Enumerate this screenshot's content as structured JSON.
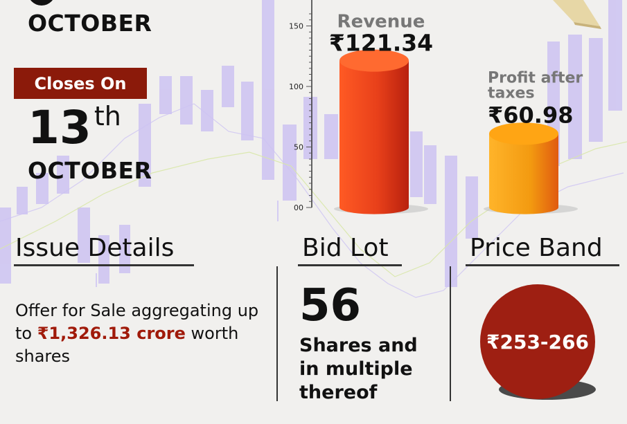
{
  "dates": {
    "open_month": "OCTOBER",
    "close_label": "Closes On",
    "close_day": "13",
    "close_suffix": "th",
    "close_month": "OCTOBER"
  },
  "issue": {
    "heading": "Issue Details",
    "text_before": "Offer for Sale aggregating up to ",
    "amount": "₹1,326.13 crore",
    "text_after": " worth shares"
  },
  "bid": {
    "heading": "Bid Lot",
    "number": "56",
    "line1": "Shares and",
    "line2": "in multiple",
    "line3": "thereof"
  },
  "price": {
    "heading": "Price Band",
    "value": "₹253-266"
  },
  "colors": {
    "accent_red": "#8b1a0a",
    "amount_red": "#a01a0a",
    "revenue_bar": "#e8401a",
    "profit_bar": "#f39a10",
    "candle": "#c9bff0"
  },
  "chart_data": {
    "type": "bar",
    "categories": [
      "Revenue",
      "Profit after taxes"
    ],
    "values": [
      121.34,
      60.98
    ],
    "value_labels": [
      "₹121.34",
      "₹60.98"
    ],
    "y_ticks": [
      "00",
      "50",
      "100",
      "150"
    ],
    "ylim": [
      0,
      160
    ],
    "grid": false
  }
}
